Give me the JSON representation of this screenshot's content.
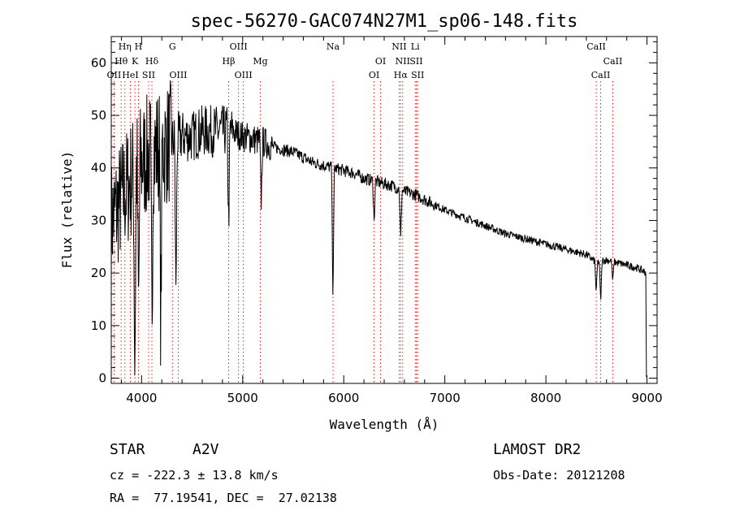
{
  "chart_data": {
    "type": "line",
    "title": "spec-56270-GAC074N27M1_sp06-148.fits",
    "xlabel": "Wavelength (Å)",
    "ylabel": "Flux (relative)",
    "xlim": [
      3700,
      9100
    ],
    "ylim": [
      -1,
      65
    ],
    "xticks": [
      4000,
      5000,
      6000,
      7000,
      8000,
      9000
    ],
    "yticks": [
      0,
      10,
      20,
      30,
      40,
      50,
      60
    ],
    "grid": false,
    "line_color": "#000000",
    "marker_color": "#ff0000",
    "continuum": {
      "x": [
        3700,
        3800,
        3900,
        4000,
        4100,
        4200,
        4300,
        4400,
        4500,
        4600,
        4700,
        4800,
        4900,
        5000,
        5100,
        5200,
        5300,
        5400,
        5500,
        5600,
        5700,
        5800,
        5900,
        6000,
        6100,
        6200,
        6300,
        6400,
        6500,
        6600,
        6700,
        6800,
        6900,
        7000,
        7200,
        7400,
        7600,
        7800,
        8000,
        8200,
        8400,
        8500,
        8600,
        8700,
        8800,
        8900,
        9000
      ],
      "y": [
        30,
        34,
        38,
        41,
        43,
        44,
        45,
        46,
        46,
        47,
        47,
        47,
        47,
        46,
        45.5,
        45,
        44,
        43.5,
        43,
        42,
        41,
        40.5,
        40,
        39.5,
        39,
        38,
        37.5,
        37,
        36.5,
        35.5,
        35,
        34,
        33,
        32,
        30.5,
        29,
        27.5,
        26.5,
        25.5,
        24.5,
        23.5,
        22,
        22.5,
        22,
        21.5,
        21,
        20
      ]
    },
    "absorption_lines": [
      {
        "x": 3933,
        "depth": 38
      },
      {
        "x": 3970,
        "depth": 30
      },
      {
        "x": 4102,
        "depth": 32
      },
      {
        "x": 4190,
        "depth": 35
      },
      {
        "x": 4340,
        "depth": 30
      },
      {
        "x": 4861,
        "depth": 18
      },
      {
        "x": 5183,
        "depth": 12
      },
      {
        "x": 5893,
        "depth": 25
      },
      {
        "x": 6300,
        "depth": 8
      },
      {
        "x": 6563,
        "depth": 10
      },
      {
        "x": 8498,
        "depth": 6
      },
      {
        "x": 8542,
        "depth": 8
      },
      {
        "x": 8662,
        "depth": 4
      }
    ],
    "line_markers": [
      {
        "x": 3727,
        "label": "OII",
        "row": 3
      },
      {
        "x": 3798,
        "label": "Hθ",
        "row": 2
      },
      {
        "x": 3835,
        "label": "Hη",
        "row": 1
      },
      {
        "x": 3889,
        "label": "HeI",
        "row": 3
      },
      {
        "x": 3934,
        "label": "K",
        "row": 2
      },
      {
        "x": 3969,
        "label": "H",
        "row": 1
      },
      {
        "x": 4070,
        "label": "SII",
        "row": 3
      },
      {
        "x": 4102,
        "label": "Hδ",
        "row": 2
      },
      {
        "x": 4305,
        "label": "G",
        "row": 1
      },
      {
        "x": 4363,
        "label": "OIII",
        "row": 3
      },
      {
        "x": 4861,
        "label": "Hβ",
        "row": 2
      },
      {
        "x": 4959,
        "label": "OIII",
        "row": 1
      },
      {
        "x": 5007,
        "label": "OIII",
        "row": 3
      },
      {
        "x": 5175,
        "label": "Mg",
        "row": 2
      },
      {
        "x": 5894,
        "label": "Na",
        "row": 1
      },
      {
        "x": 6300,
        "label": "OI",
        "row": 3
      },
      {
        "x": 6364,
        "label": "OI",
        "row": 2
      },
      {
        "x": 6548,
        "label": "NII",
        "row": 1
      },
      {
        "x": 6563,
        "label": "Hα",
        "row": 3
      },
      {
        "x": 6583,
        "label": "NII",
        "row": 2
      },
      {
        "x": 6707,
        "label": "Li",
        "row": 1
      },
      {
        "x": 6717,
        "label": "SII",
        "row": 2
      },
      {
        "x": 6731,
        "label": "SII",
        "row": 3
      },
      {
        "x": 8498,
        "label": "CaII",
        "row": 1
      },
      {
        "x": 8542,
        "label": "CaII",
        "row": 3
      },
      {
        "x": 8662,
        "label": "CaII",
        "row": 2
      }
    ]
  },
  "info": {
    "object_class": "STAR",
    "subclass": "A2V",
    "survey": "LAMOST DR2",
    "cz": "cz = -222.3 ± 13.8 km/s",
    "obs_date": "Obs-Date: 20121208",
    "coords": "RA =  77.19541, DEC =  27.02138"
  }
}
